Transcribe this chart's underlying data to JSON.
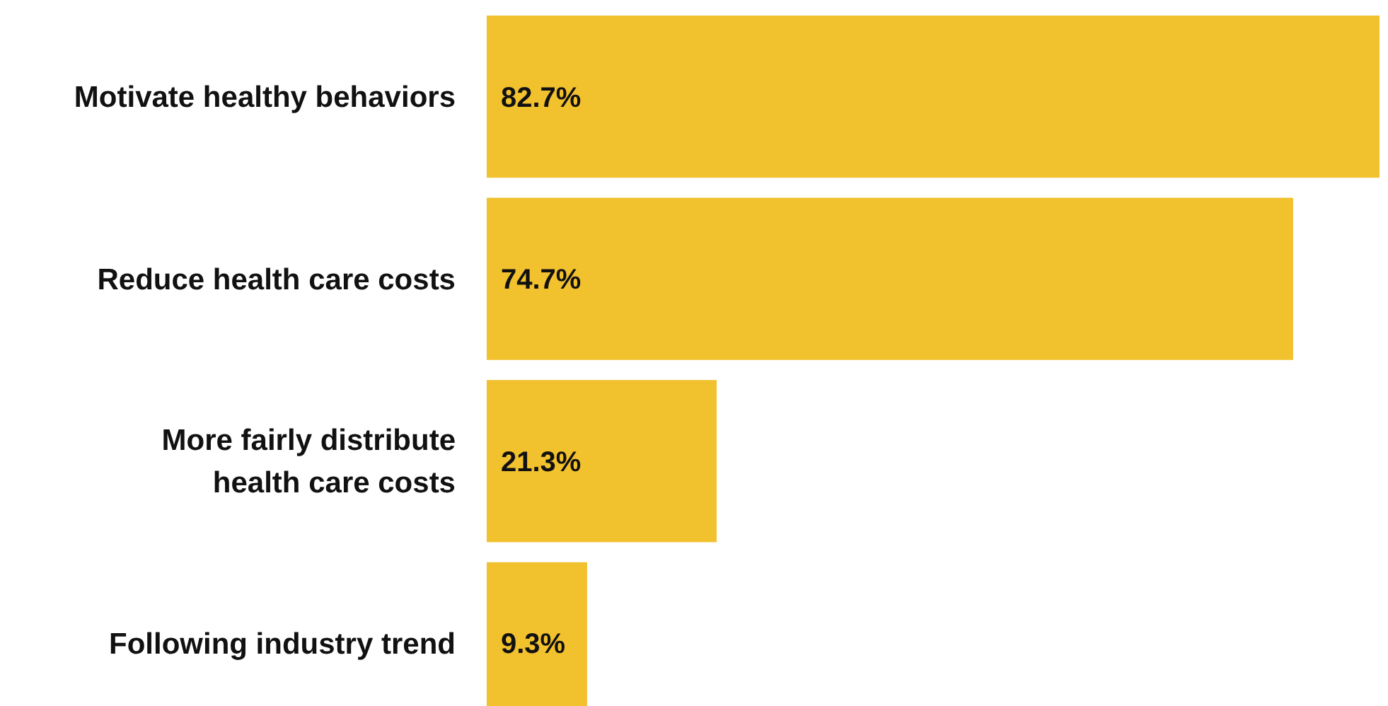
{
  "chart_data": {
    "type": "bar",
    "orientation": "horizontal",
    "categories": [
      "Motivate healthy behaviors",
      "Reduce health care costs",
      "More fairly distribute health care costs",
      "Following industry trend"
    ],
    "values": [
      82.7,
      74.7,
      21.3,
      9.3
    ],
    "color": "#f2c12e",
    "value_labels": [
      "82.7%",
      "74.7%",
      "21.3%",
      "9.3%"
    ]
  }
}
